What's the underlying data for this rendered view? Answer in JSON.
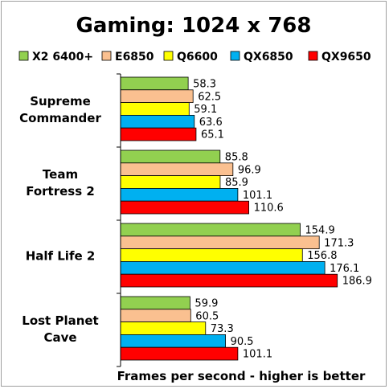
{
  "chart_data": {
    "type": "bar",
    "orientation": "horizontal",
    "title": "Gaming: 1024 x 768",
    "xlabel": "Frames per second - higher is better",
    "ylabel": "",
    "xlim": [
      0,
      200
    ],
    "grid": false,
    "legend_position": "top",
    "categories": [
      [
        "Supreme",
        "Commander"
      ],
      [
        "Team",
        "Fortress 2"
      ],
      [
        "Half Life 2"
      ],
      [
        "Lost Planet",
        "Cave"
      ]
    ],
    "series": [
      {
        "name": "X2 6400+",
        "color": "#92d050",
        "values": [
          58.3,
          85.8,
          154.9,
          59.9
        ]
      },
      {
        "name": "E6850",
        "color": "#fac090",
        "values": [
          62.5,
          96.9,
          171.3,
          60.5
        ]
      },
      {
        "name": "Q6600",
        "color": "#ffff00",
        "values": [
          59.1,
          85.9,
          156.8,
          73.3
        ]
      },
      {
        "name": "QX6850",
        "color": "#00b0f0",
        "values": [
          63.6,
          101.1,
          176.1,
          90.5
        ]
      },
      {
        "name": "QX9650",
        "color": "#ff0000",
        "values": [
          65.1,
          110.6,
          186.9,
          101.1
        ]
      }
    ]
  }
}
